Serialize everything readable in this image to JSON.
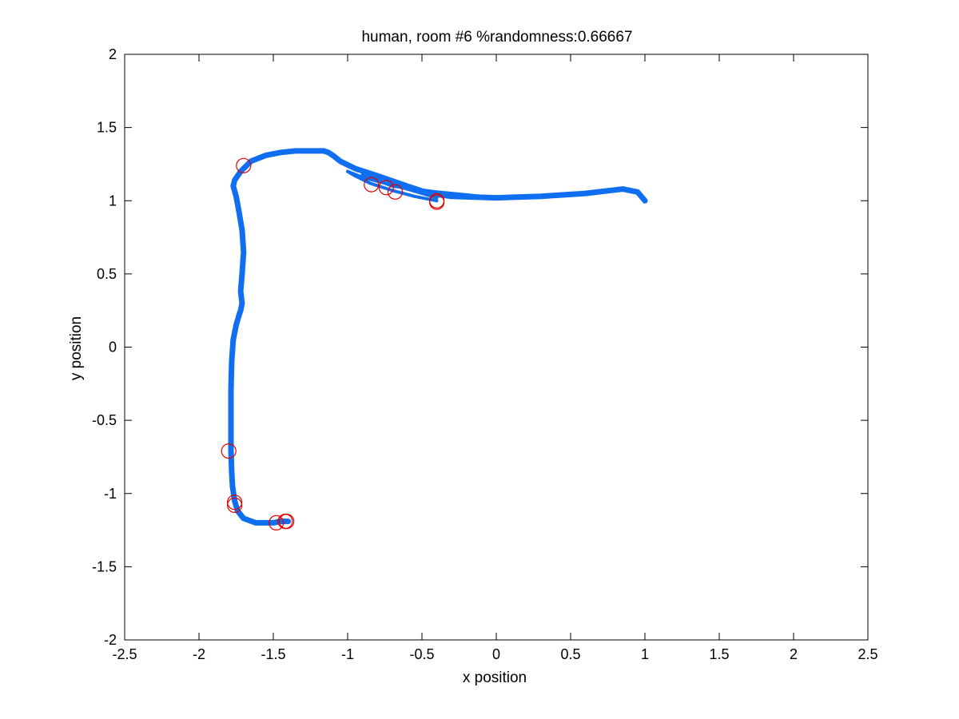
{
  "chart_data": {
    "type": "line",
    "title": "human, room #6 %randomness:0.66667",
    "xlabel": "x position",
    "ylabel": "y position",
    "xlim": [
      -2.5,
      2.5
    ],
    "ylim": [
      -2,
      2
    ],
    "xticks": [
      -2.5,
      -2,
      -1.5,
      -1,
      -0.5,
      0,
      0.5,
      1,
      1.5,
      2,
      2.5
    ],
    "yticks": [
      -2,
      -1.5,
      -1,
      -0.5,
      0,
      0.5,
      1,
      1.5,
      2
    ],
    "xtick_labels": [
      "-2.5",
      "-2",
      "-1.5",
      "-1",
      "-0.5",
      "0",
      "0.5",
      "1",
      "1.5",
      "2",
      "2.5"
    ],
    "ytick_labels": [
      "-2",
      "-1.5",
      "-1",
      "-0.5",
      "0",
      "0.5",
      "1",
      "1.5",
      "2"
    ],
    "grid": false,
    "trajectory_color": "#0f6ff0",
    "marker_color": "#e00000",
    "series": [
      {
        "x": [
          1.0,
          0.95,
          0.85,
          0.6,
          0.3,
          0.0,
          -0.3,
          -0.45,
          -0.6,
          -0.8,
          -0.95,
          -1.05,
          -1.1,
          -1.13,
          -1.16,
          -1.25,
          -1.35,
          -1.45,
          -1.55,
          -1.65,
          -1.72,
          -1.76,
          -1.77,
          -1.75,
          -1.73,
          -1.71,
          -1.7,
          -1.71,
          -1.72,
          -1.71,
          -1.72,
          -1.73,
          -1.75,
          -1.77,
          -1.78,
          -1.785,
          -1.785,
          -1.785,
          -1.78,
          -1.775,
          -1.76,
          -1.74,
          -1.7,
          -1.62,
          -1.55,
          -1.5,
          -1.45,
          -1.4
        ],
        "y": [
          1.0,
          1.06,
          1.08,
          1.05,
          1.03,
          1.02,
          1.03,
          1.05,
          1.1,
          1.17,
          1.22,
          1.27,
          1.31,
          1.33,
          1.34,
          1.34,
          1.34,
          1.33,
          1.31,
          1.27,
          1.2,
          1.14,
          1.1,
          1.03,
          0.92,
          0.8,
          0.65,
          0.5,
          0.38,
          0.3,
          0.25,
          0.22,
          0.15,
          0.05,
          -0.1,
          -0.3,
          -0.5,
          -0.7,
          -0.85,
          -0.95,
          -1.05,
          -1.12,
          -1.17,
          -1.2,
          -1.2,
          -1.2,
          -1.19,
          -1.19
        ]
      },
      {
        "x": [
          -0.4,
          -0.55,
          -0.7,
          -0.85,
          -0.95,
          -1.0
        ],
        "y": [
          1.0,
          1.03,
          1.07,
          1.12,
          1.17,
          1.2
        ]
      },
      {
        "x": [
          -0.4,
          -0.6,
          -0.75,
          -0.9,
          -1.0
        ],
        "y": [
          1.02,
          1.08,
          1.12,
          1.16,
          1.2
        ]
      },
      {
        "x": [
          0.2,
          -0.1,
          -0.4,
          -0.7,
          -0.9
        ],
        "y": [
          1.02,
          1.03,
          1.06,
          1.1,
          1.18
        ]
      }
    ],
    "markers": {
      "x": [
        -1.7,
        -0.84,
        -0.74,
        -0.68,
        -0.4,
        -0.4,
        -1.8,
        -1.76,
        -1.76,
        -1.48,
        -1.42,
        -1.41
      ],
      "y": [
        1.24,
        1.11,
        1.09,
        1.06,
        1.0,
        0.99,
        -0.71,
        -1.06,
        -1.08,
        -1.2,
        -1.19,
        -1.19
      ]
    }
  }
}
